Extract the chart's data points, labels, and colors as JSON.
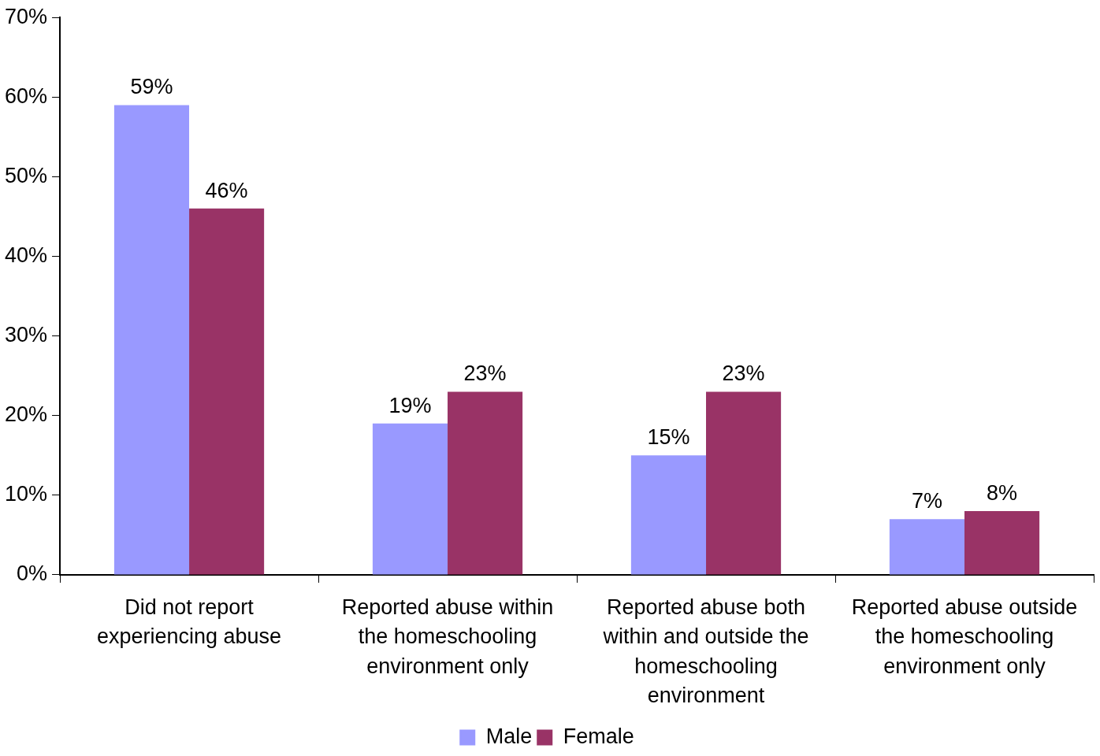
{
  "chart_data": {
    "type": "bar",
    "categories": [
      "Did not report experiencing abuse",
      "Reported abuse within the homeschooling environment only",
      "Reported abuse both within and outside the homeschooling environment",
      "Reported abuse outside the homeschooling environment only"
    ],
    "series": [
      {
        "name": "Male",
        "color": "#9999ff",
        "values": [
          59,
          19,
          15,
          7
        ],
        "value_labels": [
          "59%",
          "19%",
          "15%",
          "7%"
        ]
      },
      {
        "name": "Female",
        "color": "#993366",
        "values": [
          46,
          23,
          23,
          8
        ],
        "value_labels": [
          "46%",
          "23%",
          "23%",
          "8%"
        ]
      }
    ],
    "ylim": [
      0,
      70
    ],
    "yticks": [
      {
        "value": 0,
        "label": "0%"
      },
      {
        "value": 10,
        "label": "10%"
      },
      {
        "value": 20,
        "label": "20%"
      },
      {
        "value": 30,
        "label": "30%"
      },
      {
        "value": 40,
        "label": "40%"
      },
      {
        "value": 50,
        "label": "50%"
      },
      {
        "value": 60,
        "label": "60%"
      },
      {
        "value": 70,
        "label": "70%"
      }
    ],
    "grid": false,
    "legend": "bottom"
  }
}
